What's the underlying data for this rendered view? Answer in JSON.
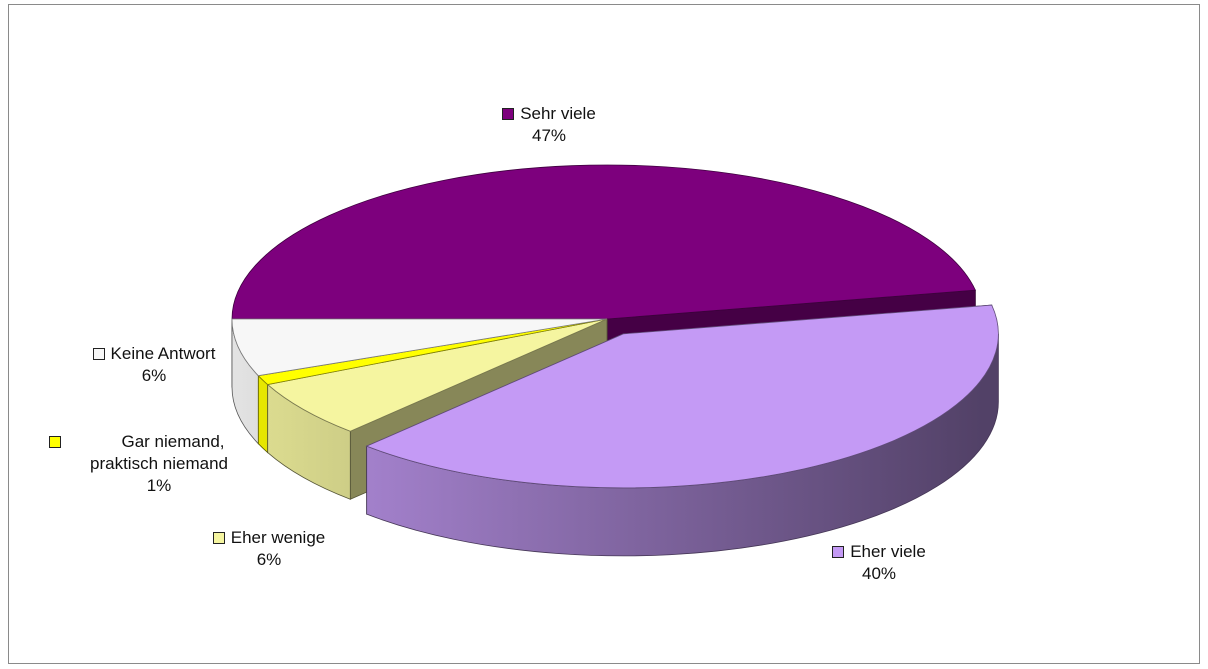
{
  "chart_data": {
    "type": "pie",
    "style": "3d-exploded",
    "categories": [
      "Sehr viele",
      "Eher viele",
      "Eher wenige",
      "Gar niemand, praktisch niemand",
      "Keine Antwort"
    ],
    "values": [
      47,
      40,
      6,
      1,
      6
    ],
    "value_labels": [
      "47%",
      "40%",
      "6%",
      "1%",
      "6%"
    ],
    "label_lines": [
      [
        "Sehr viele"
      ],
      [
        "Eher viele"
      ],
      [
        "Eher wenige"
      ],
      [
        "Gar niemand,",
        "praktisch niemand"
      ],
      [
        "Keine Antwort"
      ]
    ],
    "colors": [
      "#7d007d",
      "#c49af5",
      "#f5f5a0",
      "#ffff00",
      "#f7f7f7"
    ],
    "exploded": [
      false,
      true,
      false,
      false,
      false
    ]
  }
}
